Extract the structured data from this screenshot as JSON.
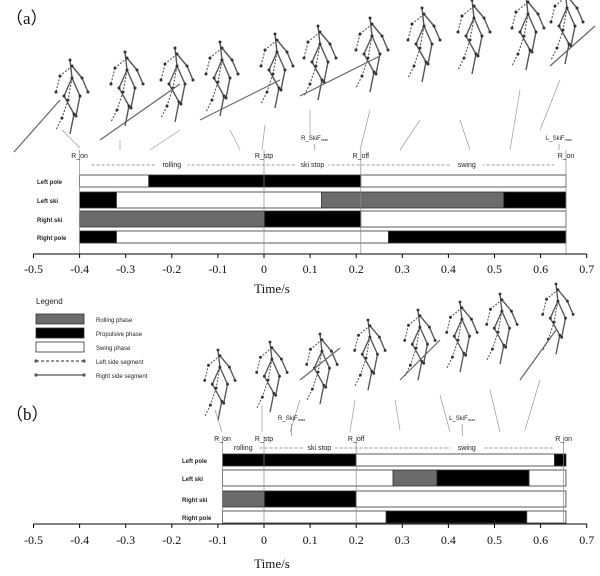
{
  "colors": {
    "rolling": "#6b6b6b",
    "propulsive": "#000000",
    "swing": "#ffffff",
    "stroke": "#333333",
    "skier": "#555555"
  },
  "legend": {
    "title": "Legend",
    "items": [
      {
        "label": "Rolling phase",
        "kind": "rolling"
      },
      {
        "label": "Propulsive phase",
        "kind": "propulsive"
      },
      {
        "label": "Swing phase",
        "kind": "swing"
      },
      {
        "label": "Left side segment",
        "kind": "left-line"
      },
      {
        "label": "Right side segment",
        "kind": "right-line"
      }
    ]
  },
  "axis": {
    "label": "Time/s",
    "ticks": [
      "-0.5",
      "-0.4",
      "-0.3",
      "-0.2",
      "-0.1",
      "0",
      "0.1",
      "0.2",
      "0.3",
      "0.4",
      "0.5",
      "0.6",
      "0.7"
    ]
  },
  "panels": [
    {
      "label": "（a）",
      "rows": [
        "Left pole",
        "Left ski",
        "Right ski",
        "Right pole"
      ],
      "events": [
        {
          "text": "R_on",
          "t": -0.4
        },
        {
          "text": "R_stp",
          "t": 0
        },
        {
          "text": "R_off",
          "t": 0.21
        },
        {
          "text": "R_on",
          "t": 0.655
        }
      ],
      "phase_names": [
        {
          "text": "rolling",
          "t": -0.2
        },
        {
          "text": "ski stop",
          "t": 0.105
        },
        {
          "text": "swing",
          "t": 0.44
        }
      ],
      "markers": [
        {
          "text": "R_SkiF",
          "sub": "max",
          "t": 0.11
        },
        {
          "text": "L_SkiF",
          "sub": "max",
          "t": 0.64
        }
      ],
      "bars": [
        [
          {
            "s": -0.4,
            "e": -0.25,
            "k": "swing"
          },
          {
            "s": -0.25,
            "e": 0.21,
            "k": "propulsive"
          },
          {
            "s": 0.21,
            "e": 0.655,
            "k": "swing"
          }
        ],
        [
          {
            "s": -0.4,
            "e": -0.32,
            "k": "propulsive"
          },
          {
            "s": -0.32,
            "e": 0.125,
            "k": "swing"
          },
          {
            "s": 0.125,
            "e": 0.52,
            "k": "rolling"
          },
          {
            "s": 0.52,
            "e": 0.655,
            "k": "propulsive"
          }
        ],
        [
          {
            "s": -0.4,
            "e": 0,
            "k": "rolling"
          },
          {
            "s": 0,
            "e": 0.21,
            "k": "propulsive"
          },
          {
            "s": 0.21,
            "e": 0.655,
            "k": "swing"
          }
        ],
        [
          {
            "s": -0.4,
            "e": -0.32,
            "k": "propulsive"
          },
          {
            "s": -0.32,
            "e": 0.27,
            "k": "swing"
          },
          {
            "s": 0.27,
            "e": 0.655,
            "k": "propulsive"
          }
        ]
      ]
    },
    {
      "label": "（b）",
      "rows": [
        "Left pole",
        "Left ski",
        "Right ski",
        "Right pole"
      ],
      "events": [
        {
          "text": "R_on",
          "t": -0.09
        },
        {
          "text": "R_stp",
          "t": 0
        },
        {
          "text": "R_off",
          "t": 0.2
        },
        {
          "text": "R_on",
          "t": 0.65
        }
      ],
      "phase_names": [
        {
          "text": "rolling",
          "t": -0.045
        },
        {
          "text": "ski stop",
          "t": 0.12
        },
        {
          "text": "swing",
          "t": 0.44
        }
      ],
      "markers": [
        {
          "text": "R_SkiF",
          "sub": "max",
          "t": 0.06
        },
        {
          "text": "L_SkiF",
          "sub": "max",
          "t": 0.43
        }
      ],
      "bars": [
        [
          {
            "s": -0.09,
            "e": 0.2,
            "k": "propulsive"
          },
          {
            "s": 0.2,
            "e": 0.63,
            "k": "swing"
          },
          {
            "s": 0.63,
            "e": 0.655,
            "k": "propulsive"
          }
        ],
        [
          {
            "s": -0.09,
            "e": 0.28,
            "k": "swing"
          },
          {
            "s": 0.28,
            "e": 0.375,
            "k": "rolling"
          },
          {
            "s": 0.375,
            "e": 0.575,
            "k": "propulsive"
          },
          {
            "s": 0.575,
            "e": 0.655,
            "k": "swing"
          }
        ],
        [
          {
            "s": -0.09,
            "e": 0,
            "k": "rolling"
          },
          {
            "s": 0,
            "e": 0.2,
            "k": "propulsive"
          },
          {
            "s": 0.2,
            "e": 0.655,
            "k": "swing"
          }
        ],
        [
          {
            "s": -0.09,
            "e": 0.265,
            "k": "swing"
          },
          {
            "s": 0.265,
            "e": 0.57,
            "k": "propulsive"
          },
          {
            "s": 0.57,
            "e": 0.655,
            "k": "swing"
          }
        ]
      ]
    }
  ]
}
